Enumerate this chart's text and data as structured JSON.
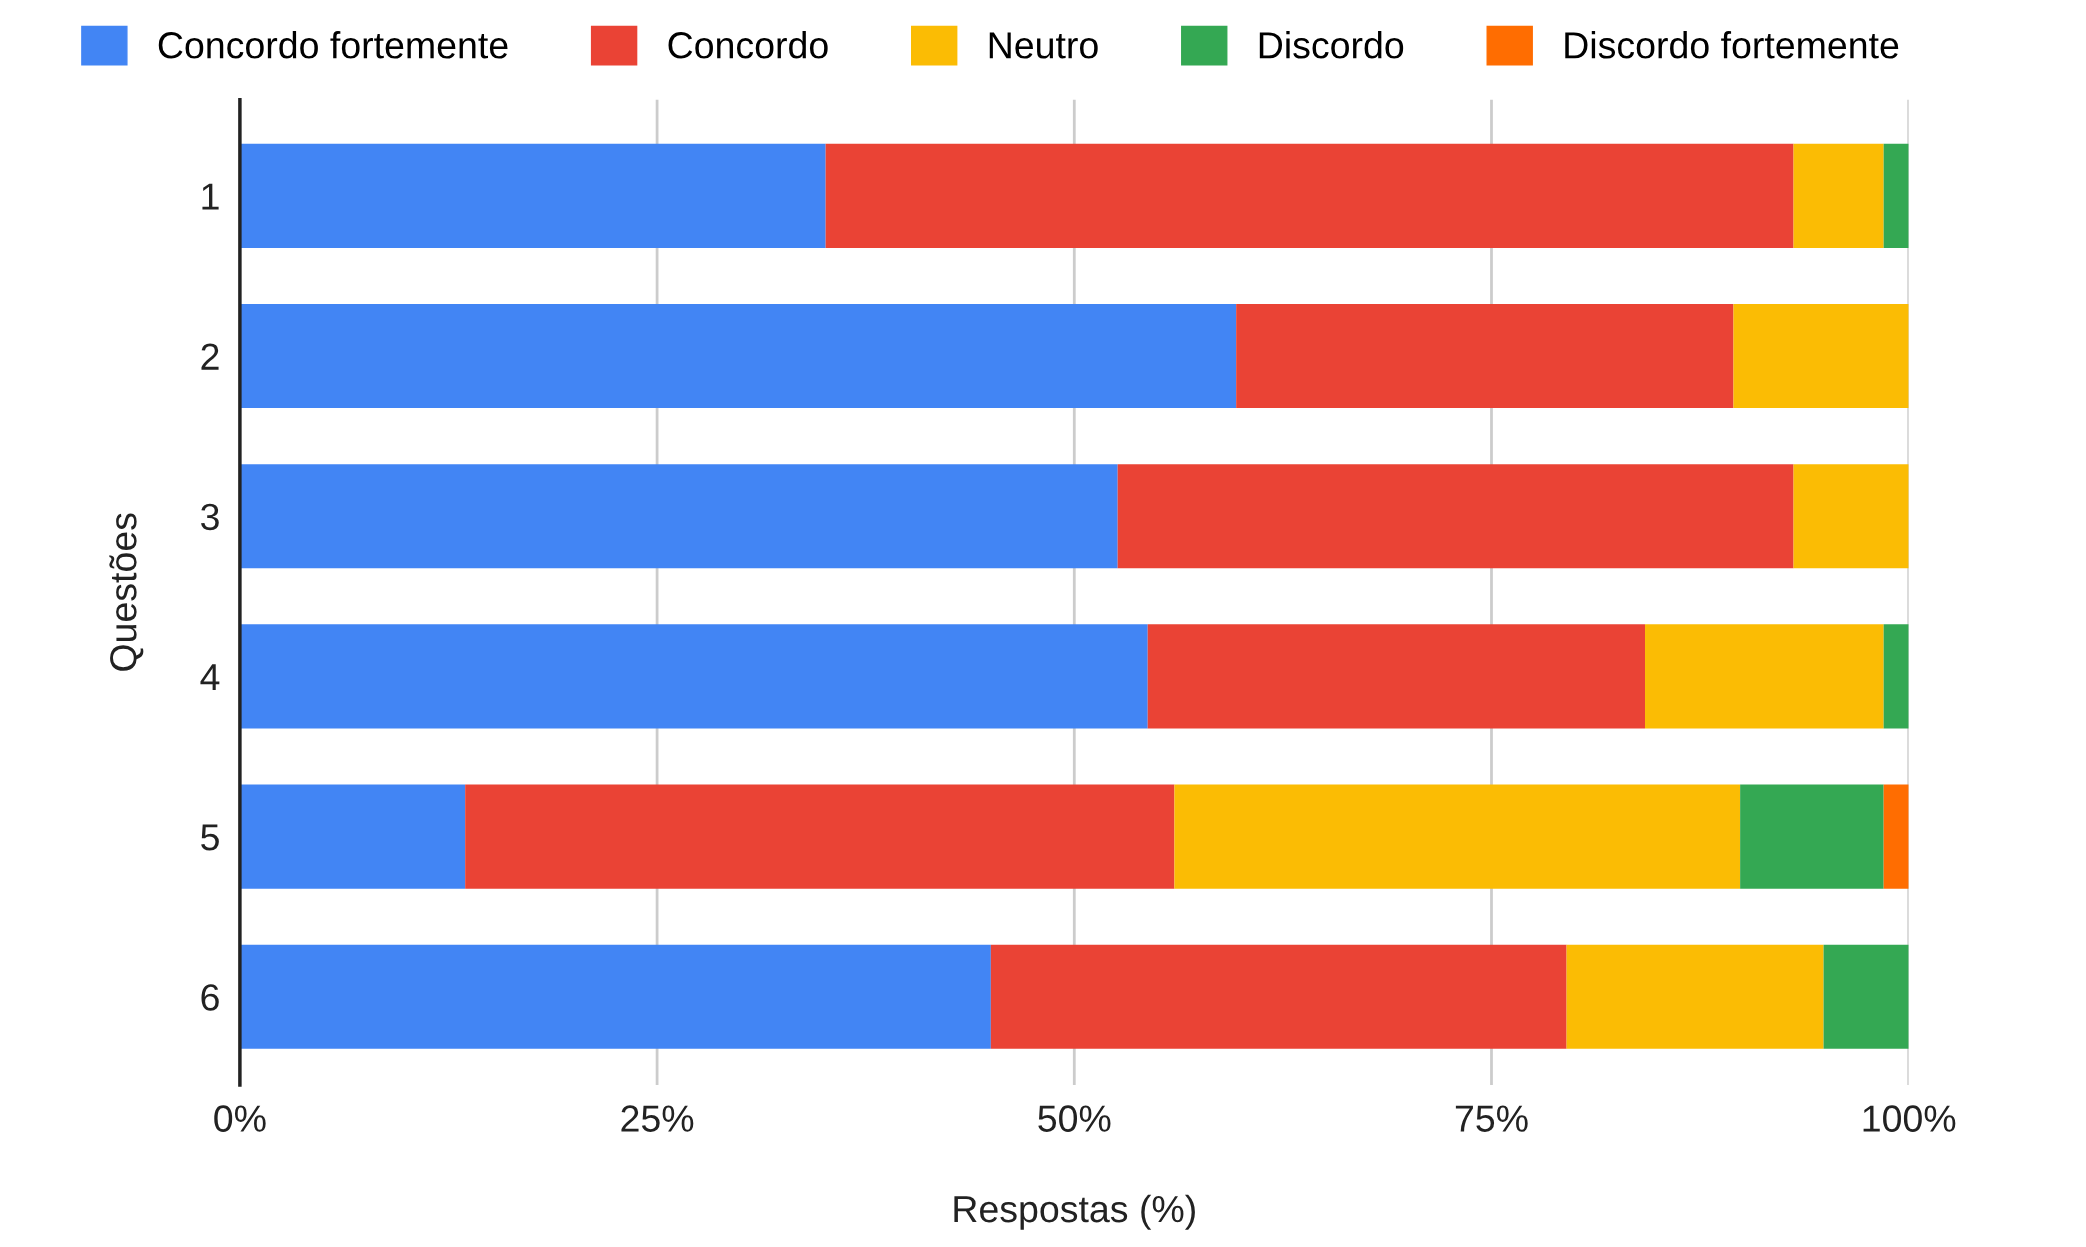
{
  "chart_data": {
    "type": "bar",
    "orientation": "horizontal",
    "stacked": true,
    "xlabel": "Respostas (%)",
    "ylabel": "Questões",
    "categories": [
      "1",
      "2",
      "3",
      "4",
      "5",
      "6"
    ],
    "series": [
      {
        "name": "Concordo fortemente",
        "color": "#4285f4",
        "values": [
          35.1,
          59.7,
          52.6,
          54.4,
          13.5,
          45.0
        ]
      },
      {
        "name": "Concordo",
        "color": "#ea4335",
        "values": [
          58.0,
          29.8,
          40.5,
          29.8,
          42.5,
          34.5
        ]
      },
      {
        "name": "Neutro",
        "color": "#fbbc04",
        "values": [
          5.4,
          10.5,
          6.9,
          14.3,
          33.9,
          15.4
        ]
      },
      {
        "name": "Discordo",
        "color": "#34a853",
        "values": [
          1.5,
          null,
          null,
          1.5,
          8.6,
          5.1
        ]
      },
      {
        "name": "Discordo fortemente",
        "color": "#ff6d01",
        "values": [
          null,
          null,
          null,
          null,
          1.5,
          null
        ]
      }
    ],
    "xlim": [
      0,
      100
    ],
    "xticks": [
      {
        "value": 0,
        "label": "0%"
      },
      {
        "value": 25,
        "label": "25%"
      },
      {
        "value": 50,
        "label": "50%"
      },
      {
        "value": 75,
        "label": "75%"
      },
      {
        "value": 100,
        "label": "100%"
      }
    ],
    "grid": "x",
    "legend": "top"
  }
}
